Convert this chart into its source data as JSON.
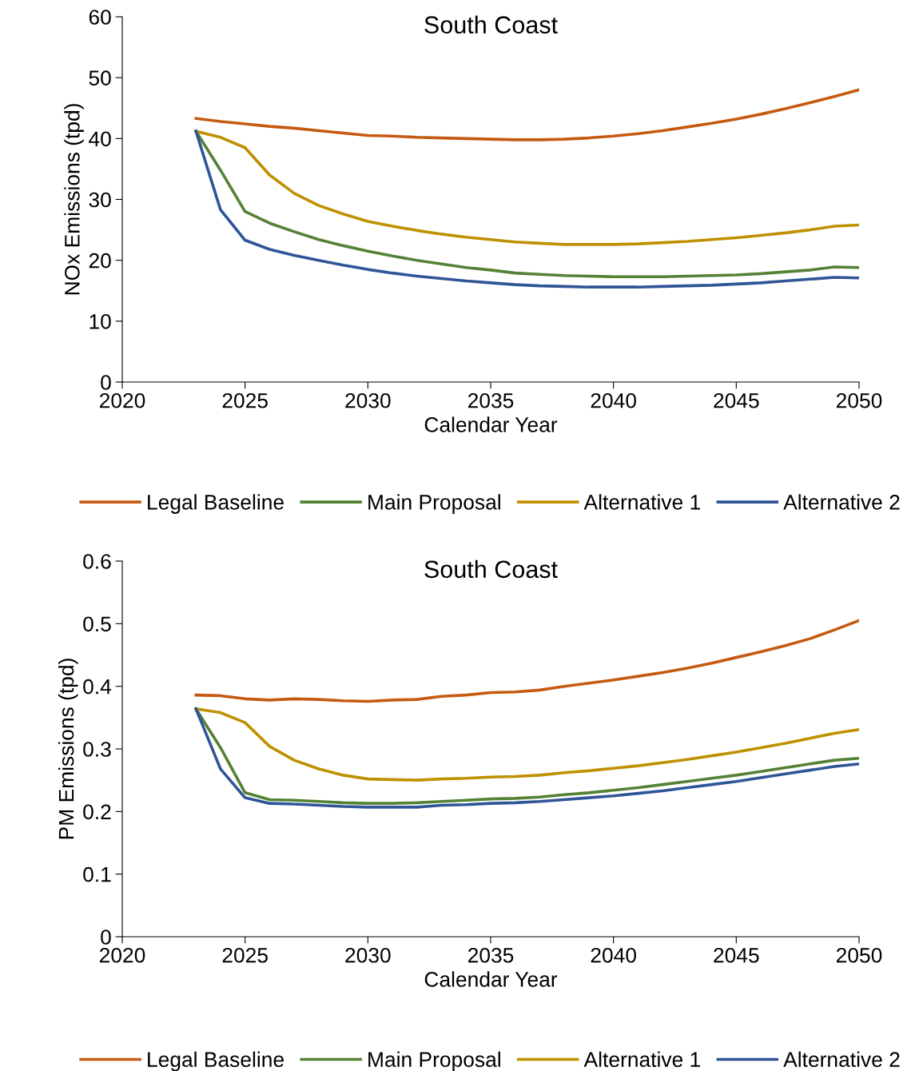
{
  "chart_data": [
    {
      "type": "line",
      "title": "South Coast",
      "xlabel": "Calendar Year",
      "ylabel": "NOx Emissions (tpd)",
      "x": [
        2023,
        2024,
        2025,
        2026,
        2027,
        2028,
        2029,
        2030,
        2031,
        2032,
        2033,
        2034,
        2035,
        2036,
        2037,
        2038,
        2039,
        2040,
        2041,
        2042,
        2043,
        2044,
        2045,
        2046,
        2047,
        2048,
        2049,
        2050
      ],
      "series": [
        {
          "name": "Legal Baseline",
          "color": "#c55a11",
          "values": [
            43.3,
            42.8,
            42.4,
            42.0,
            41.7,
            41.3,
            40.9,
            40.5,
            40.4,
            40.2,
            40.1,
            40.0,
            39.9,
            39.8,
            39.8,
            39.9,
            40.1,
            40.4,
            40.8,
            41.3,
            41.9,
            42.5,
            43.2,
            44.0,
            44.9,
            45.9,
            46.9,
            48.0
          ]
        },
        {
          "name": "Main Proposal",
          "color": "#548235",
          "values": [
            41.2,
            34.8,
            28.0,
            26.1,
            24.7,
            23.4,
            22.4,
            21.5,
            20.7,
            20.0,
            19.4,
            18.8,
            18.4,
            17.9,
            17.7,
            17.5,
            17.4,
            17.3,
            17.3,
            17.3,
            17.4,
            17.5,
            17.6,
            17.8,
            18.1,
            18.4,
            18.9,
            18.8
          ]
        },
        {
          "name": "Alternative 1",
          "color": "#bf9000",
          "values": [
            41.2,
            40.2,
            38.5,
            34.0,
            31.0,
            29.0,
            27.6,
            26.4,
            25.6,
            24.9,
            24.3,
            23.8,
            23.4,
            23.0,
            22.8,
            22.6,
            22.6,
            22.6,
            22.7,
            22.9,
            23.1,
            23.4,
            23.7,
            24.1,
            24.5,
            25.0,
            25.6,
            25.8
          ]
        },
        {
          "name": "Alternative 2",
          "color": "#2f5597",
          "values": [
            41.2,
            28.3,
            23.3,
            21.8,
            20.8,
            20.0,
            19.2,
            18.5,
            17.9,
            17.4,
            17.0,
            16.6,
            16.3,
            16.0,
            15.8,
            15.7,
            15.6,
            15.6,
            15.6,
            15.7,
            15.8,
            15.9,
            16.1,
            16.3,
            16.6,
            16.9,
            17.2,
            17.1
          ]
        }
      ],
      "xlim": [
        2020,
        2050
      ],
      "xticks": [
        2020,
        2025,
        2030,
        2035,
        2040,
        2045,
        2050
      ],
      "ylim": [
        0,
        60
      ],
      "yticks": [
        0,
        10,
        20,
        30,
        40,
        50,
        60
      ],
      "grid": false,
      "legend": "bottom",
      "marker": "none",
      "line_style": "solid"
    },
    {
      "type": "line",
      "title": "South Coast",
      "xlabel": "Calendar Year",
      "ylabel": "PM Emissions (tpd)",
      "x": [
        2023,
        2024,
        2025,
        2026,
        2027,
        2028,
        2029,
        2030,
        2031,
        2032,
        2033,
        2034,
        2035,
        2036,
        2037,
        2038,
        2039,
        2040,
        2041,
        2042,
        2043,
        2044,
        2045,
        2046,
        2047,
        2048,
        2049,
        2050
      ],
      "series": [
        {
          "name": "Legal Baseline",
          "color": "#c55a11",
          "values": [
            0.386,
            0.385,
            0.38,
            0.378,
            0.38,
            0.379,
            0.377,
            0.376,
            0.378,
            0.379,
            0.384,
            0.386,
            0.39,
            0.391,
            0.394,
            0.4,
            0.405,
            0.41,
            0.416,
            0.422,
            0.429,
            0.437,
            0.446,
            0.455,
            0.465,
            0.476,
            0.49,
            0.505
          ]
        },
        {
          "name": "Main Proposal",
          "color": "#548235",
          "values": [
            0.364,
            0.302,
            0.23,
            0.219,
            0.218,
            0.216,
            0.214,
            0.213,
            0.213,
            0.214,
            0.216,
            0.218,
            0.22,
            0.221,
            0.223,
            0.227,
            0.23,
            0.234,
            0.238,
            0.243,
            0.248,
            0.253,
            0.258,
            0.264,
            0.27,
            0.276,
            0.282,
            0.285
          ]
        },
        {
          "name": "Alternative 1",
          "color": "#bf9000",
          "values": [
            0.364,
            0.358,
            0.342,
            0.304,
            0.282,
            0.268,
            0.258,
            0.252,
            0.251,
            0.25,
            0.252,
            0.253,
            0.255,
            0.256,
            0.258,
            0.262,
            0.265,
            0.269,
            0.273,
            0.278,
            0.283,
            0.289,
            0.295,
            0.302,
            0.309,
            0.317,
            0.325,
            0.331
          ]
        },
        {
          "name": "Alternative 2",
          "color": "#2f5597",
          "values": [
            0.364,
            0.268,
            0.222,
            0.213,
            0.212,
            0.21,
            0.208,
            0.207,
            0.207,
            0.207,
            0.21,
            0.211,
            0.213,
            0.214,
            0.216,
            0.219,
            0.222,
            0.225,
            0.229,
            0.233,
            0.238,
            0.243,
            0.248,
            0.254,
            0.26,
            0.266,
            0.272,
            0.276
          ]
        }
      ],
      "xlim": [
        2020,
        2050
      ],
      "xticks": [
        2020,
        2025,
        2030,
        2035,
        2040,
        2045,
        2050
      ],
      "ylim": [
        0,
        0.6
      ],
      "yticks": [
        0,
        0.1,
        0.2,
        0.3,
        0.4,
        0.5,
        0.6
      ],
      "grid": false,
      "legend": "bottom",
      "marker": "none",
      "line_style": "solid"
    }
  ]
}
